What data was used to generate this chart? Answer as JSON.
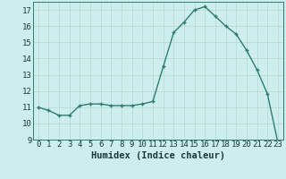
{
  "x": [
    0,
    1,
    2,
    3,
    4,
    5,
    6,
    7,
    8,
    9,
    10,
    11,
    12,
    13,
    14,
    15,
    16,
    17,
    18,
    19,
    20,
    21,
    22,
    23
  ],
  "y": [
    11.0,
    10.8,
    10.5,
    10.5,
    11.1,
    11.2,
    11.2,
    11.1,
    11.1,
    11.1,
    11.2,
    11.35,
    13.5,
    15.6,
    16.25,
    17.0,
    17.2,
    16.6,
    16.0,
    15.5,
    14.5,
    13.3,
    11.8,
    8.8
  ],
  "line_color": "#2d7d6d",
  "marker": "+",
  "bg_color": "#ceeeed",
  "grid_color": "#b8dbd8",
  "xlabel": "Humidex (Indice chaleur)",
  "xlim": [
    -0.5,
    23.5
  ],
  "ylim": [
    9,
    17.5
  ],
  "yticks": [
    9,
    10,
    11,
    12,
    13,
    14,
    15,
    16,
    17
  ],
  "xticks": [
    0,
    1,
    2,
    3,
    4,
    5,
    6,
    7,
    8,
    9,
    10,
    11,
    12,
    13,
    14,
    15,
    16,
    17,
    18,
    19,
    20,
    21,
    22,
    23
  ],
  "tick_label_fontsize": 6.5,
  "xlabel_fontsize": 7.5,
  "line_width": 1.0,
  "marker_size": 3.5
}
